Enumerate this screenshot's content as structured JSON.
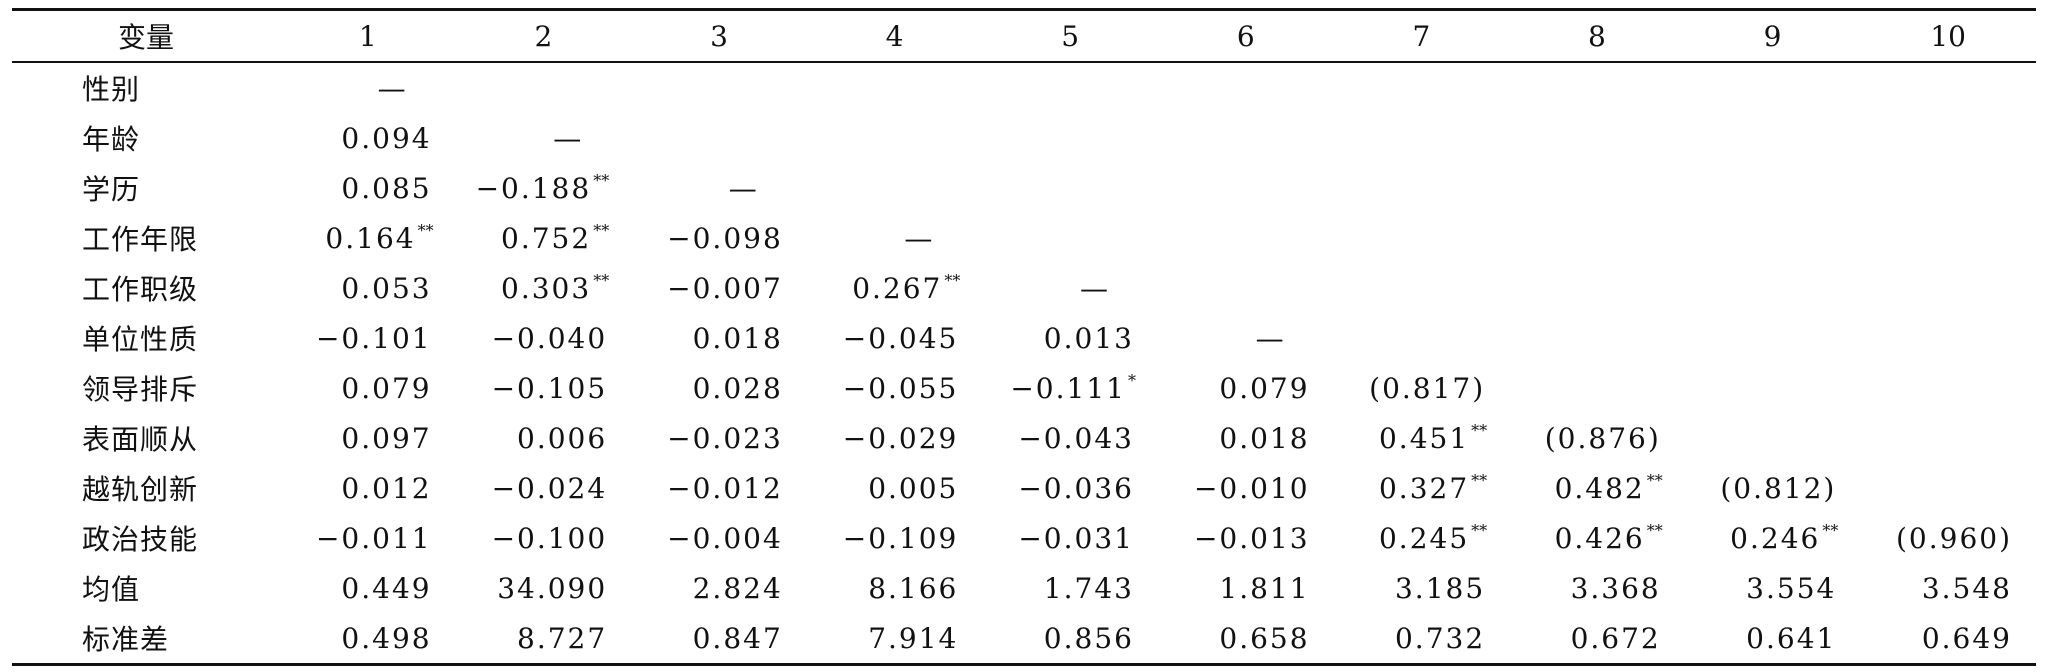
{
  "header": {
    "variable": "变量",
    "cols": [
      "1",
      "2",
      "3",
      "4",
      "5",
      "6",
      "7",
      "8",
      "9",
      "10"
    ]
  },
  "rows": [
    {
      "label": "性别",
      "cells": [
        {
          "v": "—",
          "s": ""
        },
        {
          "v": "",
          "s": ""
        },
        {
          "v": "",
          "s": ""
        },
        {
          "v": "",
          "s": ""
        },
        {
          "v": "",
          "s": ""
        },
        {
          "v": "",
          "s": ""
        },
        {
          "v": "",
          "s": ""
        },
        {
          "v": "",
          "s": ""
        },
        {
          "v": "",
          "s": ""
        },
        {
          "v": "",
          "s": ""
        }
      ]
    },
    {
      "label": "年龄",
      "cells": [
        {
          "v": "0.094",
          "s": ""
        },
        {
          "v": "—",
          "s": ""
        },
        {
          "v": "",
          "s": ""
        },
        {
          "v": "",
          "s": ""
        },
        {
          "v": "",
          "s": ""
        },
        {
          "v": "",
          "s": ""
        },
        {
          "v": "",
          "s": ""
        },
        {
          "v": "",
          "s": ""
        },
        {
          "v": "",
          "s": ""
        },
        {
          "v": "",
          "s": ""
        }
      ]
    },
    {
      "label": "学历",
      "cells": [
        {
          "v": "0.085",
          "s": ""
        },
        {
          "v": "−0.188",
          "s": "**"
        },
        {
          "v": "—",
          "s": ""
        },
        {
          "v": "",
          "s": ""
        },
        {
          "v": "",
          "s": ""
        },
        {
          "v": "",
          "s": ""
        },
        {
          "v": "",
          "s": ""
        },
        {
          "v": "",
          "s": ""
        },
        {
          "v": "",
          "s": ""
        },
        {
          "v": "",
          "s": ""
        }
      ]
    },
    {
      "label": "工作年限",
      "cells": [
        {
          "v": "0.164",
          "s": "**"
        },
        {
          "v": "0.752",
          "s": "**"
        },
        {
          "v": "−0.098",
          "s": ""
        },
        {
          "v": "—",
          "s": ""
        },
        {
          "v": "",
          "s": ""
        },
        {
          "v": "",
          "s": ""
        },
        {
          "v": "",
          "s": ""
        },
        {
          "v": "",
          "s": ""
        },
        {
          "v": "",
          "s": ""
        },
        {
          "v": "",
          "s": ""
        }
      ]
    },
    {
      "label": "工作职级",
      "cells": [
        {
          "v": "0.053",
          "s": ""
        },
        {
          "v": "0.303",
          "s": "**"
        },
        {
          "v": "−0.007",
          "s": ""
        },
        {
          "v": "0.267",
          "s": "**"
        },
        {
          "v": "—",
          "s": ""
        },
        {
          "v": "",
          "s": ""
        },
        {
          "v": "",
          "s": ""
        },
        {
          "v": "",
          "s": ""
        },
        {
          "v": "",
          "s": ""
        },
        {
          "v": "",
          "s": ""
        }
      ]
    },
    {
      "label": "单位性质",
      "cells": [
        {
          "v": "−0.101",
          "s": ""
        },
        {
          "v": "−0.040",
          "s": ""
        },
        {
          "v": "0.018",
          "s": ""
        },
        {
          "v": "−0.045",
          "s": ""
        },
        {
          "v": "0.013",
          "s": ""
        },
        {
          "v": "—",
          "s": ""
        },
        {
          "v": "",
          "s": ""
        },
        {
          "v": "",
          "s": ""
        },
        {
          "v": "",
          "s": ""
        },
        {
          "v": "",
          "s": ""
        }
      ]
    },
    {
      "label": "领导排斥",
      "cells": [
        {
          "v": "0.079",
          "s": ""
        },
        {
          "v": "−0.105",
          "s": ""
        },
        {
          "v": "0.028",
          "s": ""
        },
        {
          "v": "−0.055",
          "s": ""
        },
        {
          "v": "−0.111",
          "s": "*"
        },
        {
          "v": "0.079",
          "s": ""
        },
        {
          "v": "(0.817)",
          "s": ""
        },
        {
          "v": "",
          "s": ""
        },
        {
          "v": "",
          "s": ""
        },
        {
          "v": "",
          "s": ""
        }
      ]
    },
    {
      "label": "表面顺从",
      "cells": [
        {
          "v": "0.097",
          "s": ""
        },
        {
          "v": "0.006",
          "s": ""
        },
        {
          "v": "−0.023",
          "s": ""
        },
        {
          "v": "−0.029",
          "s": ""
        },
        {
          "v": "−0.043",
          "s": ""
        },
        {
          "v": "0.018",
          "s": ""
        },
        {
          "v": "0.451",
          "s": "**"
        },
        {
          "v": "(0.876)",
          "s": ""
        },
        {
          "v": "",
          "s": ""
        },
        {
          "v": "",
          "s": ""
        }
      ]
    },
    {
      "label": "越轨创新",
      "cells": [
        {
          "v": "0.012",
          "s": ""
        },
        {
          "v": "−0.024",
          "s": ""
        },
        {
          "v": "−0.012",
          "s": ""
        },
        {
          "v": "0.005",
          "s": ""
        },
        {
          "v": "−0.036",
          "s": ""
        },
        {
          "v": "−0.010",
          "s": ""
        },
        {
          "v": "0.327",
          "s": "**"
        },
        {
          "v": "0.482",
          "s": "**"
        },
        {
          "v": "(0.812)",
          "s": ""
        },
        {
          "v": "",
          "s": ""
        }
      ]
    },
    {
      "label": "政治技能",
      "cells": [
        {
          "v": "−0.011",
          "s": ""
        },
        {
          "v": "−0.100",
          "s": ""
        },
        {
          "v": "−0.004",
          "s": ""
        },
        {
          "v": "−0.109",
          "s": ""
        },
        {
          "v": "−0.031",
          "s": ""
        },
        {
          "v": "−0.013",
          "s": ""
        },
        {
          "v": "0.245",
          "s": "**"
        },
        {
          "v": "0.426",
          "s": "**"
        },
        {
          "v": "0.246",
          "s": "**"
        },
        {
          "v": "(0.960)",
          "s": ""
        }
      ]
    },
    {
      "label": "均值",
      "cells": [
        {
          "v": "0.449",
          "s": ""
        },
        {
          "v": "34.090",
          "s": ""
        },
        {
          "v": "2.824",
          "s": ""
        },
        {
          "v": "8.166",
          "s": ""
        },
        {
          "v": "1.743",
          "s": ""
        },
        {
          "v": "1.811",
          "s": ""
        },
        {
          "v": "3.185",
          "s": ""
        },
        {
          "v": "3.368",
          "s": ""
        },
        {
          "v": "3.554",
          "s": ""
        },
        {
          "v": "3.548",
          "s": ""
        }
      ]
    },
    {
      "label": "标准差",
      "cells": [
        {
          "v": "0.498",
          "s": ""
        },
        {
          "v": "8.727",
          "s": ""
        },
        {
          "v": "0.847",
          "s": ""
        },
        {
          "v": "7.914",
          "s": ""
        },
        {
          "v": "0.856",
          "s": ""
        },
        {
          "v": "0.658",
          "s": ""
        },
        {
          "v": "0.732",
          "s": ""
        },
        {
          "v": "0.672",
          "s": ""
        },
        {
          "v": "0.641",
          "s": ""
        },
        {
          "v": "0.649",
          "s": ""
        }
      ]
    }
  ]
}
